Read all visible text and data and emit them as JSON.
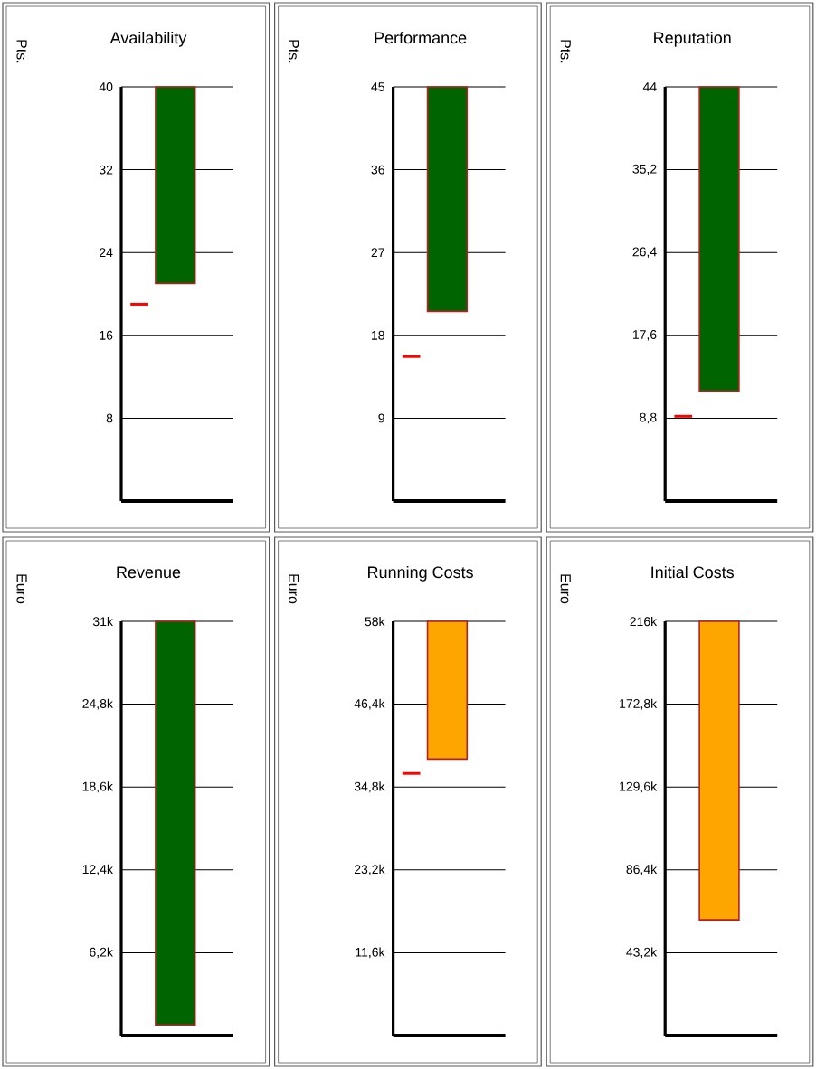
{
  "chart_data": [
    {
      "type": "bar",
      "title": "Availability",
      "ylabel": "Pts.",
      "categories": [
        null
      ],
      "values": [
        19
      ],
      "base": [
        21
      ],
      "color": "#006400",
      "ylim": [
        0,
        40
      ],
      "yticks": [
        8,
        16,
        24,
        32,
        40
      ],
      "grid": "y",
      "ref_lines": [
        {
          "axis": "y",
          "value": 19,
          "color": "#ff0000"
        }
      ]
    },
    {
      "type": "bar",
      "title": "Performance",
      "ylabel": "Pts.",
      "categories": [
        null
      ],
      "values": [
        24.4
      ],
      "base": [
        20.6
      ],
      "color": "#006400",
      "ylim": [
        0,
        45
      ],
      "yticks": [
        9,
        18,
        27,
        36,
        45
      ],
      "grid": "y",
      "ref_lines": [
        {
          "axis": "y",
          "value": 15.7,
          "color": "#ff0000"
        }
      ]
    },
    {
      "type": "bar",
      "title": "Reputation",
      "ylabel": "Pts.",
      "categories": [
        null
      ],
      "values": [
        32.3
      ],
      "base": [
        11.7
      ],
      "color": "#006400",
      "ylim": [
        0,
        44
      ],
      "yticks": [
        {
          "value": 8.8,
          "label": "8,8"
        },
        {
          "value": 17.6,
          "label": "17,6"
        },
        {
          "value": 26.4,
          "label": "26,4"
        },
        {
          "value": 35.2,
          "label": "35,2"
        },
        44
      ],
      "grid": "y",
      "ref_lines": [
        {
          "axis": "y",
          "value": 9.0,
          "color": "#ff0000"
        }
      ]
    },
    {
      "type": "bar",
      "title": "Revenue",
      "ylabel": "Euro",
      "categories": [
        null
      ],
      "values": [
        30200
      ],
      "base": [
        800
      ],
      "color": "#006400",
      "ylim": [
        0,
        31000
      ],
      "yticks": [
        {
          "value": 6200,
          "label": "6,2k"
        },
        {
          "value": 12400,
          "label": "12,4k"
        },
        {
          "value": 18600,
          "label": "18,6k"
        },
        {
          "value": 24800,
          "label": "24,8k"
        },
        {
          "value": 31000,
          "label": "31k"
        }
      ],
      "grid": "y"
    },
    {
      "type": "bar",
      "title": "Running Costs",
      "ylabel": "Euro",
      "categories": [
        null
      ],
      "values": [
        19300
      ],
      "base": [
        38700
      ],
      "color": "#ffa500",
      "ylim": [
        0,
        58000
      ],
      "yticks": [
        {
          "value": 11600,
          "label": "11,6k"
        },
        {
          "value": 23200,
          "label": "23,2k"
        },
        {
          "value": 34800,
          "label": "34,8k"
        },
        {
          "value": 46400,
          "label": "46,4k"
        },
        {
          "value": 58000,
          "label": "58k"
        }
      ],
      "grid": "y",
      "ref_lines": [
        {
          "axis": "y",
          "value": 36700,
          "color": "#ff0000"
        }
      ]
    },
    {
      "type": "bar",
      "title": "Initial Costs",
      "ylabel": "Euro",
      "categories": [
        null
      ],
      "values": [
        155700
      ],
      "base": [
        60300
      ],
      "color": "#ffa500",
      "ylim": [
        0,
        216000
      ],
      "yticks": [
        {
          "value": 43200,
          "label": "43,2k"
        },
        {
          "value": 86400,
          "label": "86,4k"
        },
        {
          "value": 129600,
          "label": "129,6k"
        },
        {
          "value": 172800,
          "label": "172,8k"
        },
        {
          "value": 216000,
          "label": "216k"
        }
      ],
      "grid": "y"
    }
  ]
}
